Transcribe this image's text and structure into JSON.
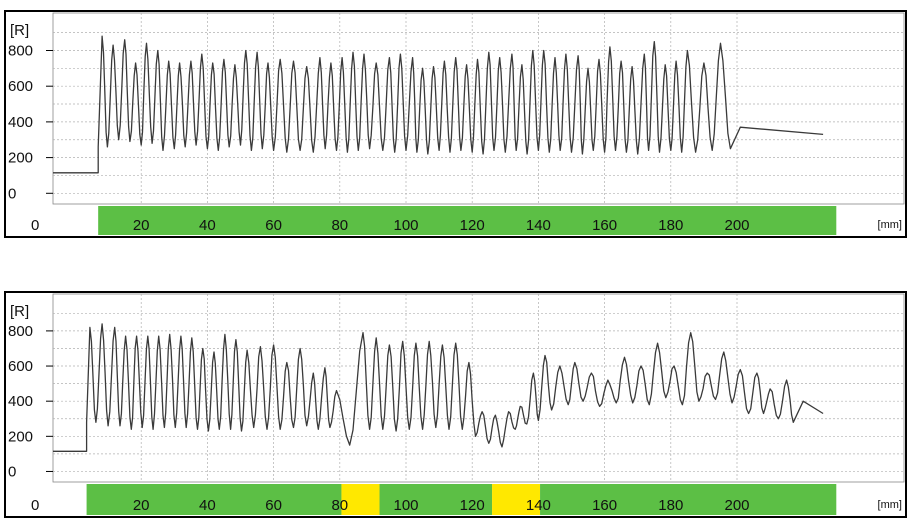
{
  "chart_data": [
    {
      "type": "line",
      "y_unit_label": "[R]",
      "x_unit_label": "[mm]",
      "y_ticks": [
        "800",
        "600",
        "400",
        "200",
        "0"
      ],
      "y_range": [
        -60,
        1010
      ],
      "x_origin_label": "0",
      "x_ticks": [
        "20",
        "40",
        "60",
        "80",
        "100",
        "120",
        "140",
        "160",
        "180",
        "200"
      ],
      "x_range": [
        0,
        230
      ],
      "grid": true,
      "colors": {
        "trace": "#3a3a3a",
        "ok_band": "#5cbf45",
        "flag_band": "#ffe800",
        "grid": "#b0b0b0",
        "frame": "#000000"
      },
      "bands": [
        {
          "from": 7.0,
          "to": 230,
          "color": "ok"
        }
      ],
      "baseline": {
        "x_start": 0,
        "x_end": 7.0,
        "value": 115
      },
      "signal_start_x": 7.0,
      "peaks": [
        [
          8.2,
          880
        ],
        [
          11.5,
          830
        ],
        [
          15.0,
          860
        ],
        [
          18.3,
          730
        ],
        [
          21.6,
          840
        ],
        [
          25.0,
          800
        ],
        [
          28.3,
          740
        ],
        [
          31.6,
          730
        ],
        [
          35.0,
          740
        ],
        [
          38.3,
          780
        ],
        [
          41.6,
          730
        ],
        [
          45.0,
          750
        ],
        [
          48.3,
          720
        ],
        [
          51.6,
          800
        ],
        [
          55.0,
          790
        ],
        [
          58.3,
          730
        ],
        [
          62.0,
          750
        ],
        [
          66.0,
          740
        ],
        [
          70.0,
          710
        ],
        [
          74.0,
          760
        ],
        [
          77.3,
          730
        ],
        [
          80.7,
          760
        ],
        [
          84.0,
          790
        ],
        [
          87.3,
          780
        ],
        [
          91.0,
          730
        ],
        [
          95.0,
          760
        ],
        [
          98.3,
          780
        ],
        [
          102.0,
          760
        ],
        [
          105.0,
          700
        ],
        [
          108.3,
          710
        ],
        [
          111.6,
          740
        ],
        [
          115.0,
          760
        ],
        [
          118.3,
          720
        ],
        [
          121.6,
          750
        ],
        [
          125.0,
          790
        ],
        [
          128.3,
          760
        ],
        [
          132.0,
          780
        ],
        [
          135.0,
          720
        ],
        [
          138.3,
          800
        ],
        [
          141.6,
          800
        ],
        [
          145.0,
          760
        ],
        [
          148.3,
          780
        ],
        [
          152.0,
          770
        ],
        [
          155.0,
          700
        ],
        [
          158.3,
          750
        ],
        [
          161.6,
          820
        ],
        [
          165.0,
          740
        ],
        [
          168.3,
          710
        ],
        [
          172.0,
          780
        ],
        [
          175.0,
          850
        ],
        [
          178.3,
          720
        ],
        [
          181.6,
          740
        ],
        [
          185.0,
          800
        ],
        [
          190.0,
          730
        ],
        [
          195.0,
          840
        ]
      ],
      "valleys": [
        [
          9.8,
          260
        ],
        [
          13.2,
          300
        ],
        [
          16.6,
          290
        ],
        [
          20.0,
          270
        ],
        [
          23.3,
          280
        ],
        [
          26.6,
          240
        ],
        [
          30.0,
          250
        ],
        [
          33.3,
          260
        ],
        [
          36.6,
          270
        ],
        [
          40.0,
          250
        ],
        [
          43.3,
          240
        ],
        [
          46.6,
          260
        ],
        [
          50.0,
          270
        ],
        [
          53.3,
          240
        ],
        [
          56.6,
          250
        ],
        [
          60.0,
          240
        ],
        [
          64.0,
          230
        ],
        [
          68.0,
          240
        ],
        [
          72.0,
          230
        ],
        [
          75.6,
          250
        ],
        [
          79.0,
          240
        ],
        [
          82.3,
          230
        ],
        [
          85.6,
          240
        ],
        [
          89.0,
          250
        ],
        [
          93.0,
          240
        ],
        [
          96.6,
          230
        ],
        [
          100.0,
          240
        ],
        [
          103.3,
          230
        ],
        [
          106.6,
          220
        ],
        [
          110.0,
          240
        ],
        [
          113.3,
          230
        ],
        [
          116.6,
          240
        ],
        [
          120.0,
          230
        ],
        [
          123.3,
          220
        ],
        [
          126.6,
          240
        ],
        [
          130.0,
          230
        ],
        [
          133.3,
          240
        ],
        [
          136.6,
          220
        ],
        [
          140.0,
          240
        ],
        [
          143.3,
          230
        ],
        [
          146.6,
          240
        ],
        [
          150.0,
          230
        ],
        [
          153.3,
          220
        ],
        [
          156.6,
          240
        ],
        [
          160.0,
          230
        ],
        [
          163.3,
          240
        ],
        [
          166.6,
          230
        ],
        [
          170.0,
          220
        ],
        [
          173.3,
          240
        ],
        [
          176.6,
          230
        ],
        [
          180.0,
          240
        ],
        [
          183.3,
          230
        ],
        [
          187.5,
          230
        ],
        [
          192.5,
          240
        ],
        [
          198.0,
          250
        ]
      ]
    },
    {
      "type": "line",
      "y_unit_label": "[R]",
      "x_unit_label": "[mm]",
      "y_ticks": [
        "800",
        "600",
        "400",
        "200",
        "0"
      ],
      "y_range": [
        -60,
        1010
      ],
      "x_origin_label": "0",
      "x_ticks": [
        "20",
        "40",
        "60",
        "80",
        "100",
        "120",
        "140",
        "160",
        "180",
        "200"
      ],
      "x_range": [
        0,
        230
      ],
      "grid": true,
      "colors": {
        "trace": "#3a3a3a",
        "ok_band": "#5cbf45",
        "flag_band": "#ffe800",
        "grid": "#b0b0b0",
        "frame": "#000000"
      },
      "bands": [
        {
          "from": 3.5,
          "to": 80.5,
          "color": "ok"
        },
        {
          "from": 80.5,
          "to": 92.0,
          "color": "flag"
        },
        {
          "from": 92.0,
          "to": 126.0,
          "color": "ok"
        },
        {
          "from": 126.0,
          "to": 140.5,
          "color": "flag"
        },
        {
          "from": 140.5,
          "to": 230,
          "color": "ok"
        }
      ],
      "baseline": {
        "x_start": 0,
        "x_end": 3.5,
        "value": 115
      },
      "signal_start_x": 3.5,
      "peaks": [
        [
          4.5,
          820
        ],
        [
          8.2,
          840
        ],
        [
          12.0,
          820
        ],
        [
          15.3,
          770
        ],
        [
          18.6,
          770
        ],
        [
          22.0,
          770
        ],
        [
          25.3,
          770
        ],
        [
          28.6,
          780
        ],
        [
          32.0,
          770
        ],
        [
          35.3,
          760
        ],
        [
          38.6,
          700
        ],
        [
          42.0,
          680
        ],
        [
          45.3,
          780
        ],
        [
          48.6,
          750
        ],
        [
          52.0,
          690
        ],
        [
          56.0,
          710
        ],
        [
          60.0,
          720
        ],
        [
          64.0,
          620
        ],
        [
          68.0,
          700
        ],
        [
          72.0,
          560
        ],
        [
          75.5,
          590
        ],
        [
          79.0,
          460
        ],
        [
          87.0,
          790
        ],
        [
          91.0,
          760
        ],
        [
          95.0,
          720
        ],
        [
          99.0,
          740
        ],
        [
          103.0,
          730
        ],
        [
          107.0,
          740
        ],
        [
          111.0,
          720
        ],
        [
          115.0,
          730
        ],
        [
          119.0,
          620
        ],
        [
          123.0,
          340
        ],
        [
          127.0,
          320
        ],
        [
          131.0,
          340
        ],
        [
          134.5,
          370
        ],
        [
          138.5,
          560
        ],
        [
          142.0,
          660
        ],
        [
          146.5,
          600
        ],
        [
          151.0,
          620
        ],
        [
          156.0,
          560
        ],
        [
          161.0,
          520
        ],
        [
          166.0,
          650
        ],
        [
          171.0,
          600
        ],
        [
          176.0,
          730
        ],
        [
          181.0,
          600
        ],
        [
          186.0,
          790
        ],
        [
          191.0,
          560
        ],
        [
          196.0,
          680
        ],
        [
          201.0,
          580
        ],
        [
          206.0,
          560
        ],
        [
          210.0,
          470
        ],
        [
          215.0,
          520
        ]
      ],
      "valleys": [
        [
          6.3,
          280
        ],
        [
          10.0,
          260
        ],
        [
          13.6,
          260
        ],
        [
          17.0,
          240
        ],
        [
          20.3,
          250
        ],
        [
          23.6,
          240
        ],
        [
          27.0,
          250
        ],
        [
          30.3,
          250
        ],
        [
          33.6,
          250
        ],
        [
          37.0,
          240
        ],
        [
          40.3,
          230
        ],
        [
          43.6,
          240
        ],
        [
          47.0,
          240
        ],
        [
          50.3,
          230
        ],
        [
          54.0,
          250
        ],
        [
          58.0,
          240
        ],
        [
          62.0,
          240
        ],
        [
          66.0,
          250
        ],
        [
          70.0,
          260
        ],
        [
          73.5,
          240
        ],
        [
          77.0,
          250
        ],
        [
          83.0,
          150
        ],
        [
          89.0,
          240
        ],
        [
          93.0,
          240
        ],
        [
          97.0,
          230
        ],
        [
          101.0,
          240
        ],
        [
          105.0,
          240
        ],
        [
          109.0,
          250
        ],
        [
          113.0,
          240
        ],
        [
          117.0,
          240
        ],
        [
          121.0,
          200
        ],
        [
          125.0,
          160
        ],
        [
          129.0,
          140
        ],
        [
          133.0,
          240
        ],
        [
          136.5,
          270
        ],
        [
          140.0,
          290
        ],
        [
          144.0,
          350
        ],
        [
          149.0,
          380
        ],
        [
          153.5,
          400
        ],
        [
          158.5,
          370
        ],
        [
          163.5,
          390
        ],
        [
          168.5,
          390
        ],
        [
          173.5,
          380
        ],
        [
          178.5,
          420
        ],
        [
          183.5,
          380
        ],
        [
          188.5,
          400
        ],
        [
          193.5,
          410
        ],
        [
          198.5,
          390
        ],
        [
          203.5,
          330
        ],
        [
          208.0,
          330
        ],
        [
          212.5,
          300
        ],
        [
          217.0,
          280
        ]
      ]
    }
  ]
}
